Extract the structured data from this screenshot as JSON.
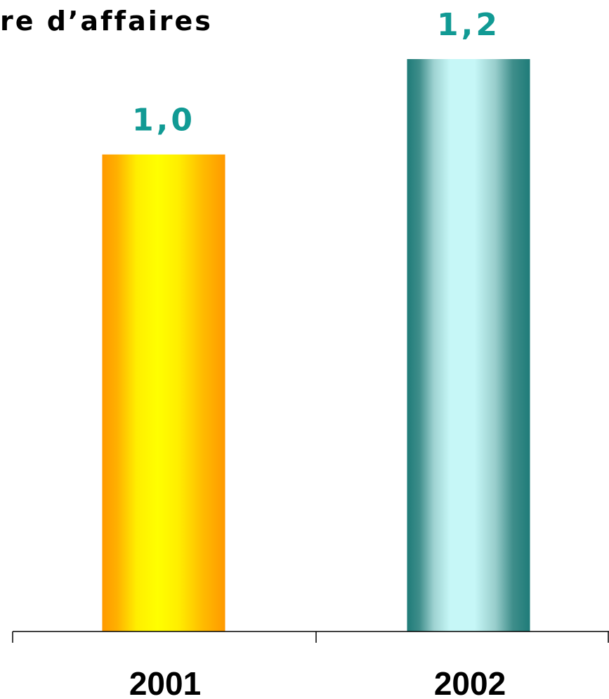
{
  "chart_data": {
    "type": "bar",
    "title": "re d’affaires",
    "categories": [
      "2001",
      "2002"
    ],
    "values": [
      1.0,
      1.2
    ],
    "value_labels": [
      "1,0",
      "1,2"
    ],
    "ylim": [
      0,
      1.2
    ],
    "grid": false,
    "colors": {
      "bar_2001": [
        "#ff9900",
        "#ffff00"
      ],
      "bar_2002": [
        "#1e7b78",
        "#c6f7f7"
      ],
      "value_label": "#119a94",
      "axis": "#000000"
    }
  }
}
